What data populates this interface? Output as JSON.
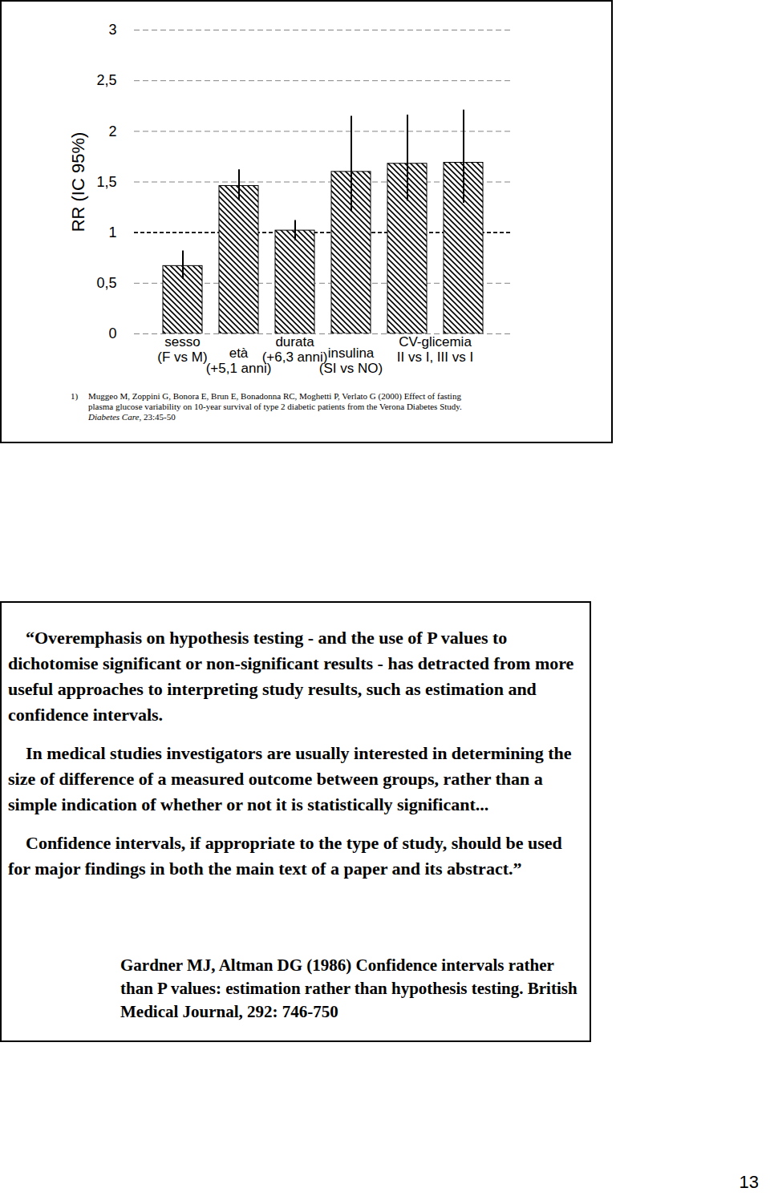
{
  "chart_data": {
    "type": "bar",
    "ylabel": "RR (IC 95%)",
    "categories": [
      "sesso\n(F vs M)",
      "età\n(+5,1 anni)",
      "durata\n(+6,3 anni)",
      "insulina\n(SI vs NO)",
      "CV-glicemia\nII vs I, III vs I",
      null
    ],
    "values": [
      0.67,
      1.46,
      1.02,
      1.6,
      1.68,
      1.69
    ],
    "ci_low": [
      0.54,
      1.32,
      0.92,
      1.21,
      1.31,
      1.29
    ],
    "ci_high": [
      0.82,
      1.62,
      1.12,
      2.15,
      2.16,
      2.21
    ],
    "color": "#000000",
    "ylim": [
      0,
      3
    ],
    "yticks": [
      0,
      {
        "value": 0.5,
        "label": "0,5"
      },
      1,
      {
        "value": 1.5,
        "label": "1,5"
      },
      2,
      {
        "value": 2.5,
        "label": "2,5"
      },
      3
    ],
    "grid": true,
    "reference_line": 1
  },
  "reference": {
    "number": "1)",
    "text": "Muggeo M, Zoppini G, Bonora E, Brun E, Bonadonna RC, Moghetti P, Verlato G (2000) Effect of fasting plasma glucose variability on 10-year survival of type 2 diabetic patients from the Verona Diabetes Study.",
    "journal": "Diabetes Care",
    "details": ", 23:45-50"
  },
  "quote": {
    "paragraphs": [
      "“Overemphasis on hypothesis testing - and the use of P values to dichotomise significant or non-significant results - has detracted from more useful approaches to interpreting study results, such as estimation and confidence intervals.",
      "In medical studies investigators are usually interested in determining the size of difference of a measured outcome between groups, rather than a simple indication of whether or not it is statistically significant...",
      "Confidence intervals, if appropriate to the type of study, should be used for major findings in both the main text of a paper and its abstract.”"
    ],
    "citation": "Gardner MJ, Altman DG (1986) Confidence intervals rather than P values: estimation rather than hypothesis testing. British Medical Journal, 292: 746-750"
  },
  "page_number": "13"
}
